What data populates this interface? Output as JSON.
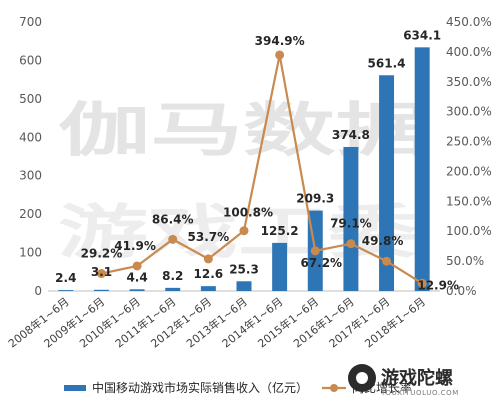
{
  "chart_data": {
    "type": "bar",
    "categories": [
      "2008年1~6月",
      "2009年1~6月",
      "2010年1~6月",
      "2011年1~6月",
      "2012年1~6月",
      "2013年1~6月",
      "2014年1~6月",
      "2015年1~6月",
      "2016年1~6月",
      "2017年1~6月",
      "2018年1~6月"
    ],
    "series": [
      {
        "name": "中国移动游戏市场实际销售收入（亿元）",
        "type": "bar",
        "axis": "left",
        "color": "#2e75b6",
        "values": [
          2.4,
          3.1,
          4.4,
          8.2,
          12.6,
          25.3,
          125.2,
          209.3,
          374.8,
          561.4,
          634.1
        ],
        "labels": [
          "2.4",
          "3.1",
          "4.4",
          "8.2",
          "12.6",
          "25.3",
          "125.2",
          "209.3",
          "374.8",
          "561.4",
          "634.1"
        ]
      },
      {
        "name": "同比增长率",
        "type": "line",
        "axis": "right",
        "color": "#c98a4f",
        "values": [
          null,
          29.2,
          41.9,
          86.4,
          53.7,
          100.8,
          394.9,
          67.2,
          79.1,
          49.8,
          12.9
        ],
        "labels": [
          "",
          "29.2%",
          "41.9%",
          "86.4%",
          "53.7%",
          "100.8%",
          "394.9%",
          "67.2%",
          "79.1%",
          "49.8%",
          "12.9%"
        ]
      }
    ],
    "y_left": {
      "ylim": [
        0,
        700
      ],
      "ticks": [
        "0",
        "100",
        "200",
        "300",
        "400",
        "500",
        "600",
        "700"
      ]
    },
    "y_right": {
      "ylim": [
        0,
        450
      ],
      "ticks": [
        "0.0%",
        "50.0%",
        "100.0%",
        "150.0%",
        "200.0%",
        "250.0%",
        "300.0%",
        "350.0%",
        "400.0%",
        "450.0%"
      ]
    },
    "legend": {
      "placement": "bottom"
    },
    "grid": false,
    "watermark": [
      "伽马数据",
      "游戏工委"
    ]
  },
  "logo": {
    "text": "游戏陀螺",
    "sub": "YOUXITUOLUO.COM"
  }
}
